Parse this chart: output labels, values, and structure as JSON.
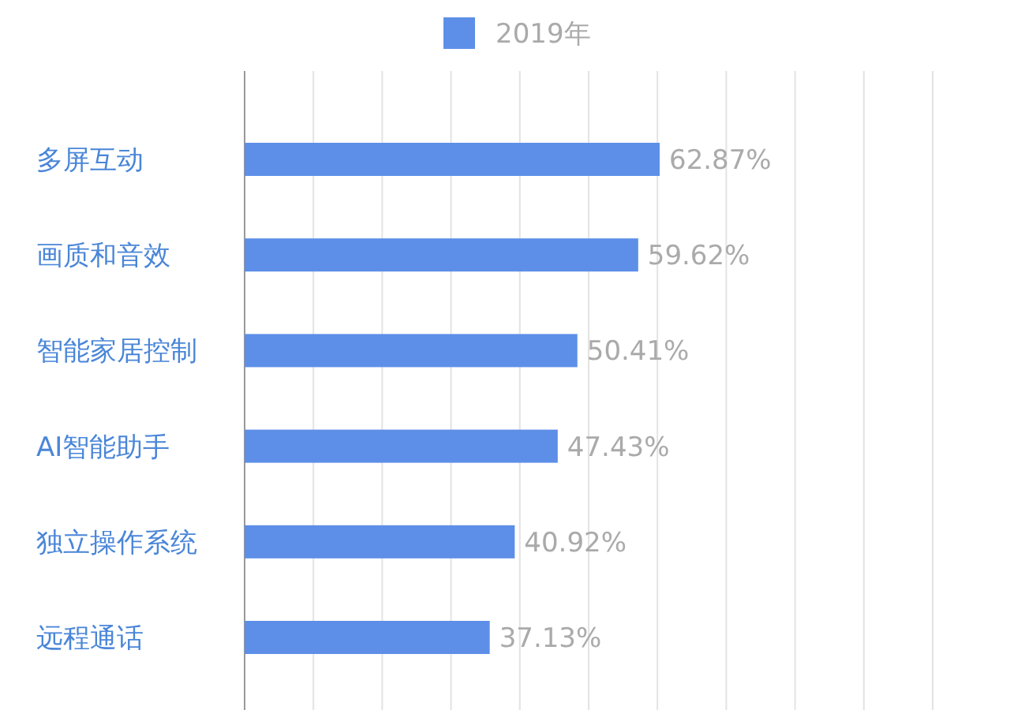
{
  "chart_data": {
    "type": "bar",
    "orientation": "horizontal",
    "categories": [
      "多屏互动",
      "画质和音效",
      "智能家居控制",
      "AI智能助手",
      "独立操作系统",
      "远程通话"
    ],
    "series": [
      {
        "name": "2019年",
        "color": "#5d8fe8",
        "values": [
          62.87,
          59.62,
          50.41,
          47.43,
          40.92,
          37.13
        ],
        "value_labels": [
          "62.87%",
          "59.62%",
          "50.41%",
          "47.43%",
          "40.92%",
          "37.13%"
        ]
      }
    ],
    "grid": "x",
    "legend": "top"
  }
}
